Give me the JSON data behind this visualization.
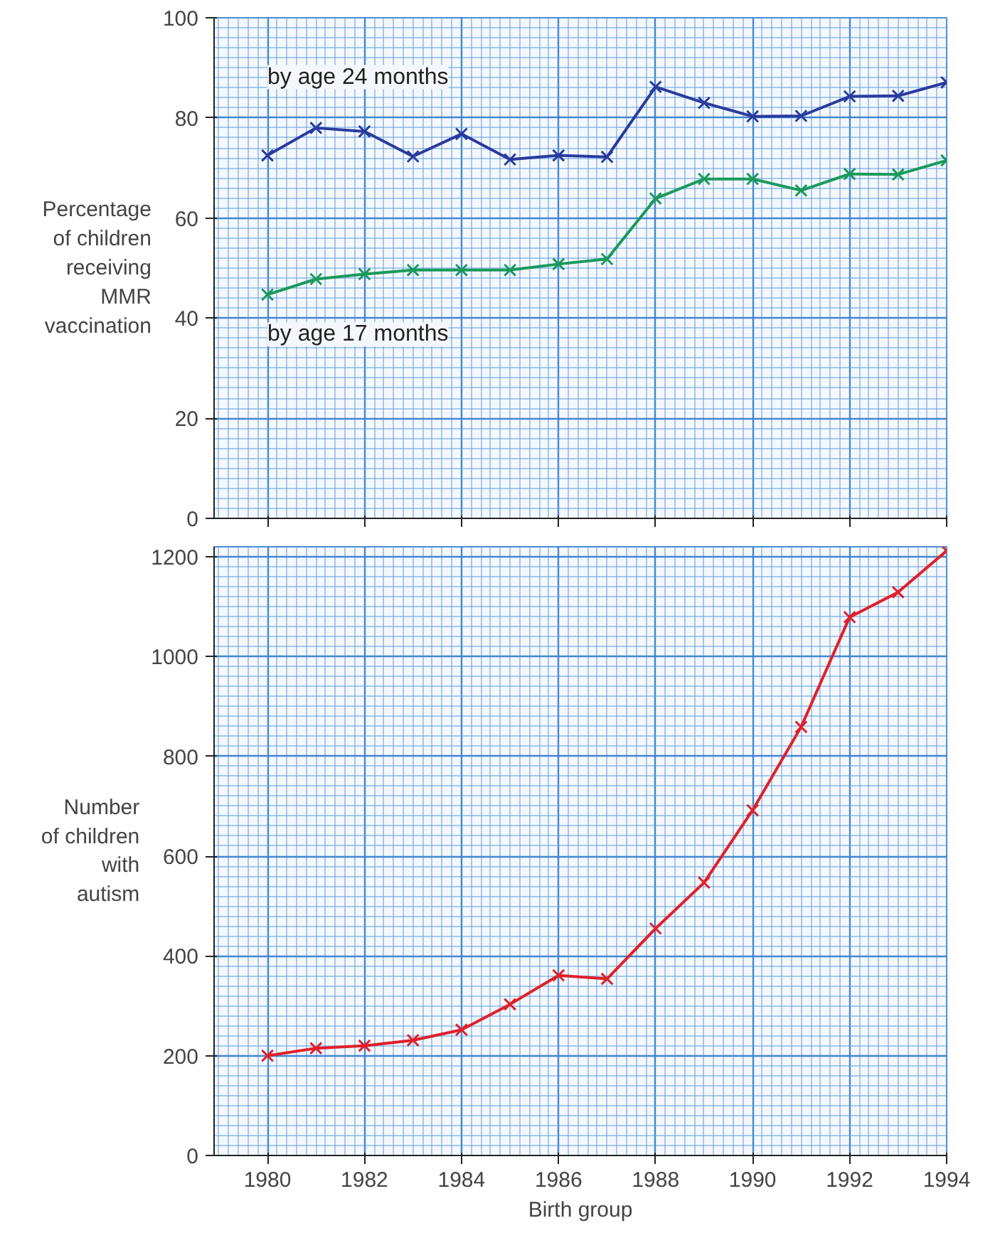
{
  "chart_data": [
    {
      "type": "line",
      "ylabel": "Percentage\nof children\nreceiving\nMMR\nvaccination",
      "x": [
        1980,
        1981,
        1982,
        1983,
        1984,
        1985,
        1986,
        1987,
        1988,
        1989,
        1990,
        1991,
        1992,
        1993,
        1994
      ],
      "series": [
        {
          "name": "by age 24 months",
          "color": "#2b3a9e",
          "values": [
            72.5,
            78,
            77.3,
            72.3,
            76.8,
            71.7,
            72.5,
            72.2,
            86.2,
            83,
            80.3,
            80.4,
            84.3,
            84.4,
            87.1
          ]
        },
        {
          "name": "by age 17 months",
          "color": "#1a9a5a",
          "values": [
            44.7,
            47.8,
            48.8,
            49.6,
            49.6,
            49.6,
            50.8,
            51.8,
            63.9,
            67.8,
            67.8,
            65.5,
            68.8,
            68.7,
            71.5
          ]
        }
      ],
      "xlim": [
        1978.9,
        1994
      ],
      "xticks": [
        1980,
        1982,
        1984,
        1986,
        1988,
        1990,
        1992,
        1994
      ],
      "ylim": [
        0,
        100
      ],
      "yticks": [
        0,
        20,
        40,
        60,
        80,
        100
      ],
      "grid": true,
      "marker": "cross",
      "line_style": "solid",
      "tick_labels": "y"
    },
    {
      "type": "line",
      "xlabel": "Birth group",
      "ylabel": "Number\nof children\nwith\nautism",
      "x": [
        1980,
        1981,
        1982,
        1983,
        1984,
        1985,
        1986,
        1987,
        1988,
        1989,
        1990,
        1991,
        1992,
        1993,
        1994
      ],
      "series": [
        {
          "color": "#e0202a",
          "values": [
            200,
            215,
            220,
            231,
            252,
            303,
            361,
            354,
            455,
            547,
            692,
            859,
            1079,
            1129,
            1212
          ]
        }
      ],
      "xlim": [
        1978.9,
        1994
      ],
      "xticks": [
        1980,
        1982,
        1984,
        1986,
        1988,
        1990,
        1992,
        1994
      ],
      "ylim": [
        0,
        1220
      ],
      "yticks": [
        0,
        200,
        400,
        600,
        800,
        1000,
        1200
      ],
      "grid": true,
      "marker": "cross",
      "line_style": "solid"
    }
  ]
}
